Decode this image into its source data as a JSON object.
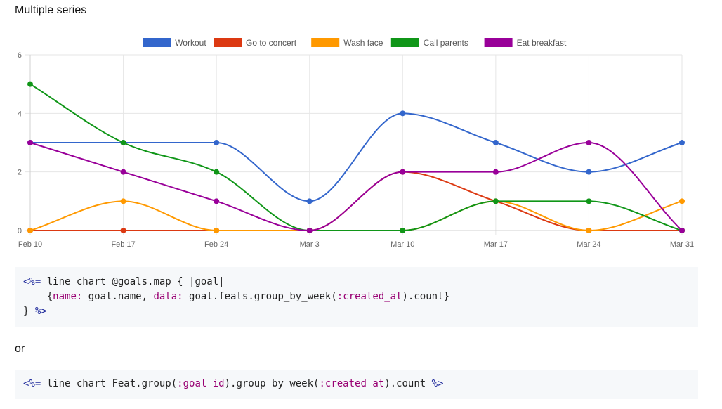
{
  "page": {
    "title": "Multiple series",
    "separator_text": "or"
  },
  "code_blocks": [
    {
      "lines": [
        [
          {
            "t": "<%=",
            "c": "tag"
          },
          {
            "t": " line_chart @goals.map { |goal|",
            "c": ""
          }
        ],
        [
          {
            "t": "    {",
            "c": ""
          },
          {
            "t": "name:",
            "c": "kw"
          },
          {
            "t": " goal.name, ",
            "c": ""
          },
          {
            "t": "data:",
            "c": "kw"
          },
          {
            "t": " goal.feats.group_by_week(",
            "c": ""
          },
          {
            "t": ":created_at",
            "c": "sym"
          },
          {
            "t": ").count}",
            "c": ""
          }
        ],
        [
          {
            "t": "} ",
            "c": ""
          },
          {
            "t": "%>",
            "c": "tag"
          }
        ]
      ]
    },
    {
      "lines": [
        [
          {
            "t": "<%=",
            "c": "tag"
          },
          {
            "t": " line_chart Feat.group(",
            "c": ""
          },
          {
            "t": ":goal_id",
            "c": "sym"
          },
          {
            "t": ").group_by_week(",
            "c": ""
          },
          {
            "t": ":created_at",
            "c": "sym"
          },
          {
            "t": ").count ",
            "c": ""
          },
          {
            "t": "%>",
            "c": "tag"
          }
        ]
      ]
    }
  ],
  "chart_data": {
    "type": "line",
    "title": "",
    "xlabel": "",
    "ylabel": "",
    "categories": [
      "Feb 10",
      "Feb 17",
      "Feb 24",
      "Mar 3",
      "Mar 10",
      "Mar 17",
      "Mar 24",
      "Mar 31"
    ],
    "ylim": [
      0,
      6
    ],
    "yticks": [
      0,
      2,
      4,
      6
    ],
    "grid": true,
    "legend_position": "top",
    "curve": "smooth",
    "series": [
      {
        "name": "Workout",
        "color": "#3366cc",
        "values": [
          3,
          3,
          3,
          1,
          4,
          3,
          2,
          3
        ]
      },
      {
        "name": "Go to concert",
        "color": "#dc3912",
        "values": [
          0,
          0,
          0,
          0,
          2,
          1,
          0,
          0
        ]
      },
      {
        "name": "Wash face",
        "color": "#ff9900",
        "values": [
          0,
          1,
          0,
          0,
          0,
          1,
          0,
          1
        ]
      },
      {
        "name": "Call parents",
        "color": "#109618",
        "values": [
          5,
          3,
          2,
          0,
          0,
          1,
          1,
          0
        ]
      },
      {
        "name": "Eat breakfast",
        "color": "#990099",
        "values": [
          3,
          2,
          1,
          0,
          2,
          2,
          3,
          0
        ]
      }
    ]
  }
}
